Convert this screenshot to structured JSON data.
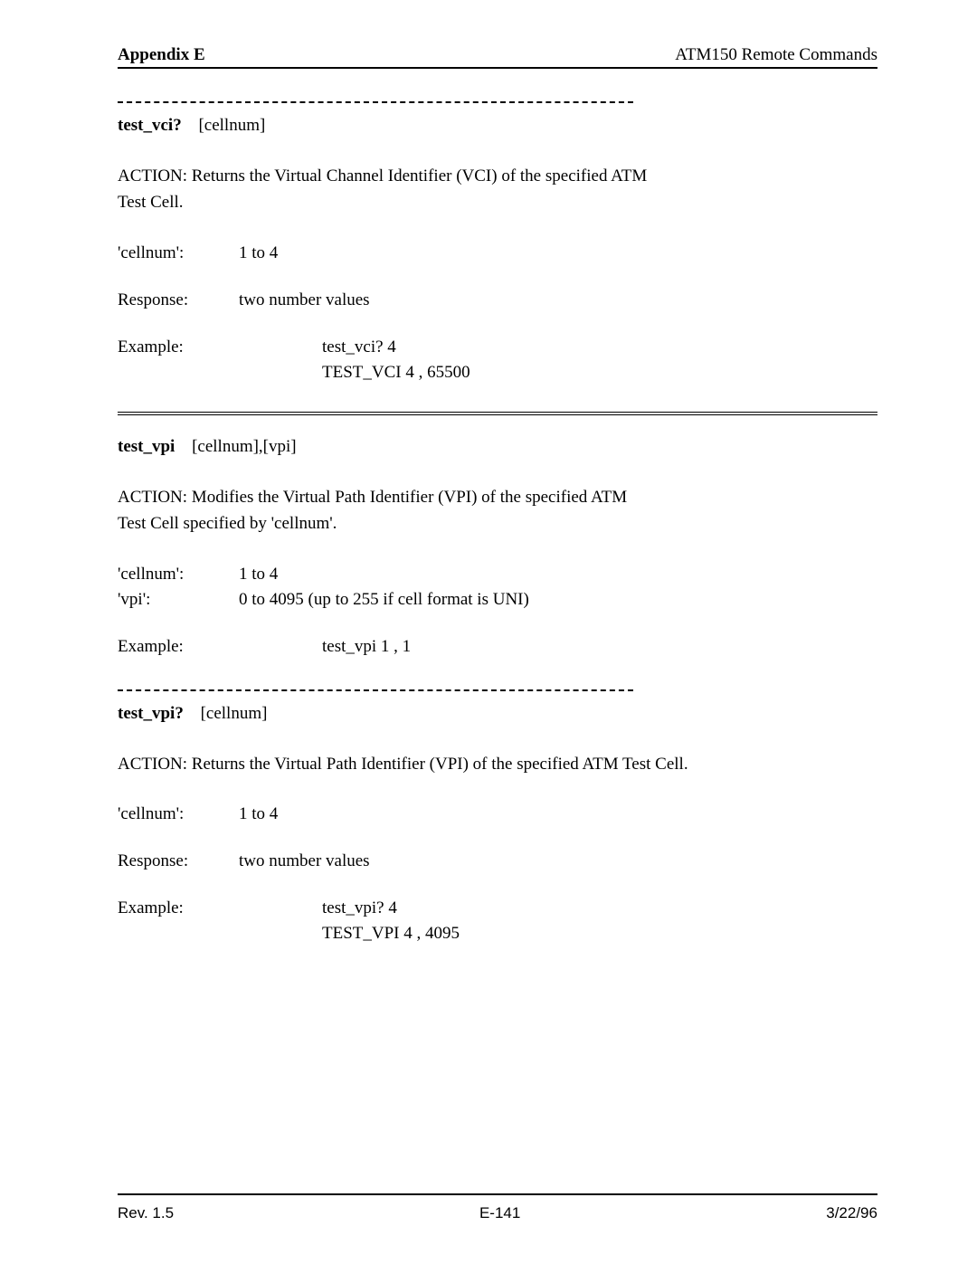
{
  "header": {
    "left": "Appendix E",
    "right": "ATM150 Remote Commands"
  },
  "sections": [
    {
      "cmd": "test_vci?",
      "args": "[cellnum]",
      "action_lines": [
        "ACTION:  Returns the Virtual Channel Identifier (VCI) of the specified ATM",
        "Test Cell."
      ],
      "params": [
        {
          "label": "'cellnum':",
          "value": "1  to  4"
        }
      ],
      "response": {
        "label": "Response:",
        "value": "two number values"
      },
      "example": {
        "label": "Example:",
        "lines": [
          "test_vci? 4",
          "TEST_VCI 4 , 65500"
        ]
      }
    },
    {
      "cmd": "test_vpi",
      "args": "[cellnum],[vpi]",
      "action_lines": [
        "ACTION:  Modifies the Virtual Path Identifier (VPI) of the specified ATM",
        "Test Cell specified by 'cellnum'."
      ],
      "params": [
        {
          "label": "'cellnum':",
          "value": "1  to  4"
        },
        {
          "label": "'vpi':",
          "value": "0  to  4095   (up to 255 if cell format is UNI)"
        }
      ],
      "example": {
        "label": "Example:",
        "lines": [
          "test_vpi 1 , 1"
        ]
      }
    },
    {
      "cmd": "test_vpi?",
      "args": "[cellnum]",
      "action_lines": [
        "ACTION:  Returns the Virtual Path Identifier (VPI) of the specified ATM Test Cell."
      ],
      "params": [
        {
          "label": "'cellnum':",
          "value": "1  to  4"
        }
      ],
      "response": {
        "label": "Response:",
        "value": "two number values"
      },
      "example": {
        "label": "Example:",
        "lines": [
          "test_vpi? 4",
          "TEST_VPI 4 , 4095"
        ]
      }
    }
  ],
  "footer": {
    "rev": "Rev. 1.5",
    "page": "E-141",
    "date": "3/22/96"
  }
}
